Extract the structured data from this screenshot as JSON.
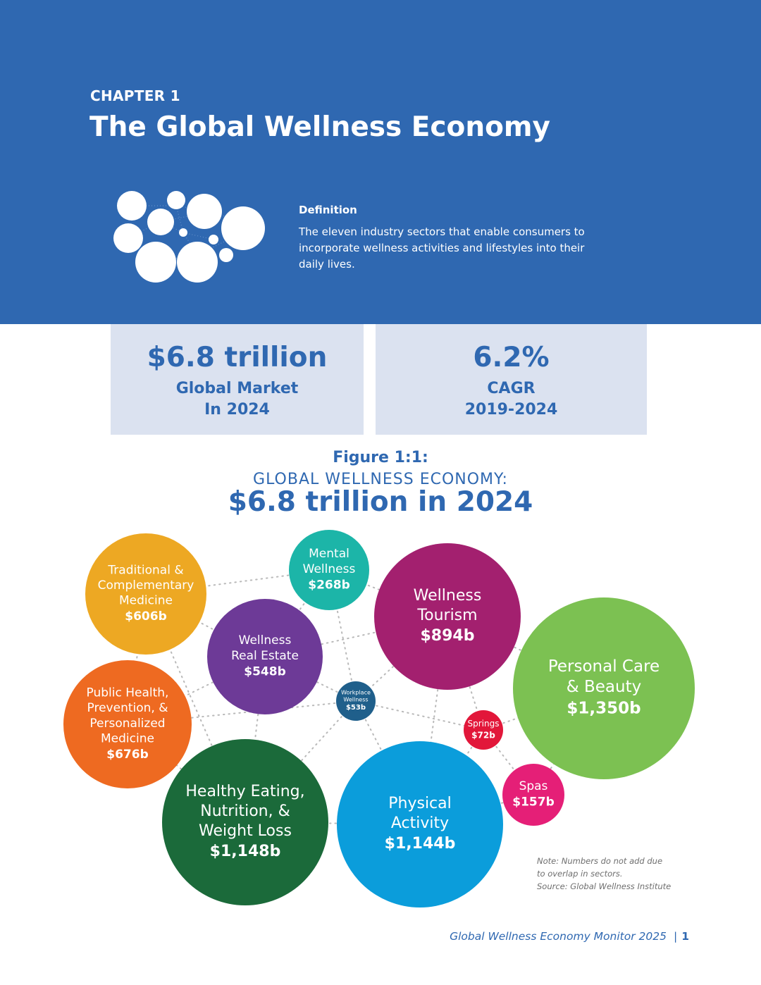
{
  "header": {
    "chapter": "CHAPTER 1",
    "title": "The Global Wellness Economy",
    "definition_title": "Definition",
    "definition_text": "The eleven industry sectors that enable consumers to incorporate wellness activities and lifestyles into their daily lives."
  },
  "stats": [
    {
      "value": "$6.8 trillion",
      "label_line1": "Global Market",
      "label_line2": "In 2024"
    },
    {
      "value": "6.2%",
      "label_line1": "CAGR",
      "label_line2": "2019-2024"
    }
  ],
  "figure": {
    "number": "Figure 1:1:",
    "title": "GLOBAL WELLNESS ECONOMY:",
    "total": "$6.8 trillion in 2024"
  },
  "chart_data": {
    "type": "bubble",
    "unit": "billions USD",
    "series": [
      {
        "name": "Traditional & Complementary Medicine",
        "label_lines": [
          "Traditional &",
          "Complementary",
          "Medicine"
        ],
        "value": 606,
        "value_label": "$606b",
        "color": "#eda823"
      },
      {
        "name": "Mental Wellness",
        "label_lines": [
          "Mental",
          "Wellness"
        ],
        "value": 268,
        "value_label": "$268b",
        "color": "#1cb5a8"
      },
      {
        "name": "Wellness Tourism",
        "label_lines": [
          "Wellness",
          "Tourism"
        ],
        "value": 894,
        "value_label": "$894b",
        "color": "#a3206f"
      },
      {
        "name": "Wellness Real Estate",
        "label_lines": [
          "Wellness",
          "Real Estate"
        ],
        "value": 548,
        "value_label": "$548b",
        "color": "#6d3a97"
      },
      {
        "name": "Personal Care & Beauty",
        "label_lines": [
          "Personal Care",
          "& Beauty"
        ],
        "value": 1350,
        "value_label": "$1,350b",
        "color": "#7cc152"
      },
      {
        "name": "Workplace Wellness",
        "label_lines": [
          "Workplace",
          "Wellness"
        ],
        "value": 53,
        "value_label": "$53b",
        "color": "#1f5f8b"
      },
      {
        "name": "Public Health, Prevention, & Personalized Medicine",
        "label_lines": [
          "Public Health,",
          "Prevention, &",
          "Personalized",
          "Medicine"
        ],
        "value": 676,
        "value_label": "$676b",
        "color": "#ee6a21"
      },
      {
        "name": "Springs",
        "label_lines": [
          "Springs"
        ],
        "value": 72,
        "value_label": "$72b",
        "color": "#e2173a"
      },
      {
        "name": "Spas",
        "label_lines": [
          "Spas"
        ],
        "value": 157,
        "value_label": "$157b",
        "color": "#e51f77"
      },
      {
        "name": "Healthy Eating, Nutrition, & Weight Loss",
        "label_lines": [
          "Healthy Eating,",
          "Nutrition, &",
          "Weight Loss"
        ],
        "value": 1148,
        "value_label": "$1,148b",
        "color": "#1b6a3a"
      },
      {
        "name": "Physical Activity",
        "label_lines": [
          "Physical",
          "Activity"
        ],
        "value": 1144,
        "value_label": "$1,144b",
        "color": "#0b9ddb"
      }
    ]
  },
  "note": {
    "line1": "Note: Numbers do not add due",
    "line2": "to overlap in sectors.",
    "line3": "Source: Global Wellness Institute"
  },
  "footer": {
    "publication": "Global Wellness Economy Monitor 2025",
    "separator": "|",
    "page": "1"
  }
}
